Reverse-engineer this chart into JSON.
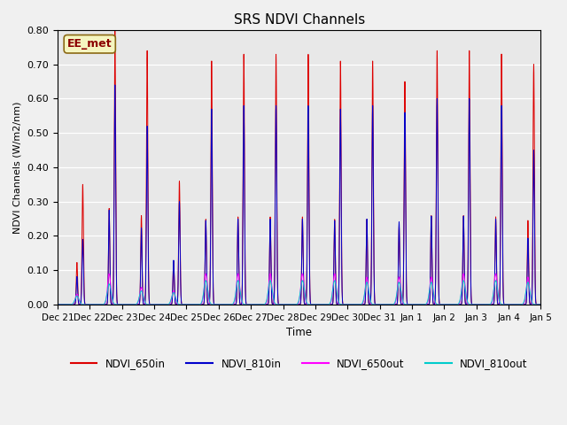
{
  "title": "SRS NDVI Channels",
  "ylabel": "NDVI Channels (W/m2/nm)",
  "xlabel": "Time",
  "annotation_text": "EE_met",
  "ylim": [
    0.0,
    0.8
  ],
  "yticks": [
    0.0,
    0.1,
    0.2,
    0.3,
    0.4,
    0.5,
    0.6,
    0.7,
    0.8
  ],
  "bg_color": "#e8e8e8",
  "line_colors": {
    "NDVI_650in": "#dd0000",
    "NDVI_810in": "#0000cc",
    "NDVI_650out": "#ff00ff",
    "NDVI_810out": "#00cccc"
  },
  "xtick_labels": [
    "Dec 21",
    "Dec 22",
    "Dec 23",
    "Dec 24",
    "Dec 25",
    "Dec 26",
    "Dec 27",
    "Dec 28",
    "Dec 29",
    "Dec 30",
    "Dec 31",
    "Jan 1",
    "Jan 2",
    "Jan 3",
    "Jan 4",
    "Jan 5"
  ],
  "h650in": [
    0.35,
    0.8,
    0.74,
    0.36,
    0.71,
    0.73,
    0.73,
    0.73,
    0.71,
    0.71,
    0.65,
    0.74,
    0.74,
    0.73,
    0.7
  ],
  "h810in": [
    0.19,
    0.64,
    0.52,
    0.3,
    0.57,
    0.58,
    0.58,
    0.58,
    0.57,
    0.58,
    0.56,
    0.6,
    0.6,
    0.58,
    0.45
  ],
  "h650out": [
    0.03,
    0.09,
    0.05,
    0.04,
    0.09,
    0.09,
    0.09,
    0.09,
    0.09,
    0.08,
    0.08,
    0.08,
    0.09,
    0.09,
    0.08
  ],
  "h810out": [
    0.025,
    0.06,
    0.04,
    0.035,
    0.07,
    0.07,
    0.07,
    0.07,
    0.07,
    0.065,
    0.065,
    0.065,
    0.07,
    0.07,
    0.065
  ]
}
